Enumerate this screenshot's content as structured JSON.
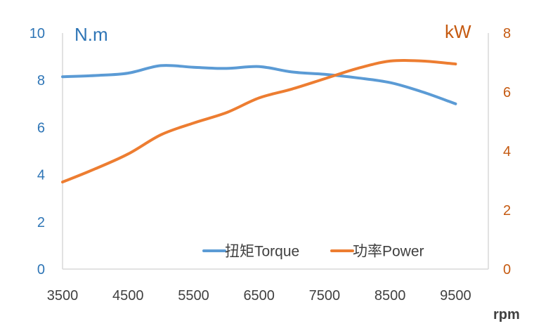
{
  "chart_data": {
    "type": "line",
    "xlabel": "rpm",
    "x_ticks": [
      "3500",
      "4500",
      "5500",
      "6500",
      "7500",
      "8500",
      "9500"
    ],
    "xlim": [
      3500,
      10000
    ],
    "y_left": {
      "label": "N.m",
      "range": [
        0,
        10
      ],
      "ticks": [
        "0",
        "2",
        "4",
        "6",
        "8",
        "10"
      ],
      "color": "#2e75b6"
    },
    "y_right": {
      "label": "kW",
      "range": [
        0,
        8
      ],
      "ticks": [
        "0",
        "2",
        "4",
        "6",
        "8"
      ],
      "color": "#c55a11"
    },
    "legend_position": "bottom-right",
    "grid": false,
    "series": [
      {
        "name": "扭矩Torque",
        "axis": "left",
        "color": "#5b9bd5",
        "x": [
          3500,
          4000,
          4500,
          5000,
          5500,
          6000,
          6500,
          7000,
          7500,
          8000,
          8500,
          9000,
          9500
        ],
        "values": [
          8.15,
          8.2,
          8.3,
          8.62,
          8.55,
          8.5,
          8.58,
          8.35,
          8.25,
          8.1,
          7.9,
          7.5,
          7.0
        ]
      },
      {
        "name": "功率Power",
        "axis": "right",
        "color": "#ed7d31",
        "x": [
          3500,
          4000,
          4500,
          5000,
          5500,
          6000,
          6500,
          7000,
          7500,
          8000,
          8500,
          9000,
          9500
        ],
        "values": [
          2.95,
          3.4,
          3.9,
          4.55,
          4.95,
          5.3,
          5.8,
          6.1,
          6.45,
          6.8,
          7.05,
          7.05,
          6.95
        ]
      }
    ]
  }
}
